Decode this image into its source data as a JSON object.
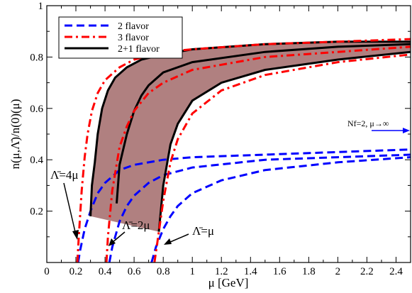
{
  "chart_data": {
    "type": "line",
    "xlabel": "μ [GeV]",
    "ylabel": "n(μ,Λ̄)/n(0)(μ)",
    "xlim": [
      0,
      2.5
    ],
    "ylim": [
      0,
      1
    ],
    "x_ticks": [
      "0",
      "0.2",
      "0.4",
      "0.6",
      "0.8",
      "1",
      "1.2",
      "1.4",
      "1.6",
      "1.8",
      "2",
      "2.2",
      "2.4"
    ],
    "y_ticks": [
      "0.2",
      "0.4",
      "0.6",
      "0.8",
      "1"
    ],
    "grid": false,
    "legend_position": "top-left",
    "legend": [
      {
        "label": "2 flavor",
        "color": "#0000ff",
        "dash": "dashed"
      },
      {
        "label": "3 flavor",
        "color": "#ff0000",
        "dash": "dashdot"
      },
      {
        "label": "2+1 flavor",
        "color": "#000000",
        "dash": "solid"
      }
    ],
    "band_color": "#b08080",
    "series": [
      {
        "name": "2 flavor",
        "color": "#0000ff",
        "dash": "dashed",
        "curves": [
          {
            "x": [
              0.215,
              0.23,
              0.26,
              0.3,
              0.35,
              0.4,
              0.5,
              0.6,
              0.8,
              1.0,
              1.5,
              2.0,
              2.5
            ],
            "y": [
              0,
              0.05,
              0.13,
              0.2,
              0.27,
              0.31,
              0.36,
              0.38,
              0.4,
              0.41,
              0.42,
              0.43,
              0.44
            ]
          },
          {
            "x": [
              0.43,
              0.45,
              0.5,
              0.55,
              0.6,
              0.7,
              0.8,
              1.0,
              1.5,
              2.0,
              2.5
            ],
            "y": [
              0,
              0.06,
              0.16,
              0.22,
              0.26,
              0.31,
              0.34,
              0.37,
              0.4,
              0.41,
              0.42
            ]
          },
          {
            "x": [
              0.72,
              0.75,
              0.8,
              0.85,
              0.9,
              1.0,
              1.2,
              1.5,
              2.0,
              2.5
            ],
            "y": [
              0,
              0.06,
              0.13,
              0.18,
              0.22,
              0.27,
              0.32,
              0.36,
              0.39,
              0.41
            ]
          }
        ]
      },
      {
        "name": "3 flavor",
        "color": "#ff0000",
        "dash": "dashdot",
        "curves": [
          {
            "x": [
              0.21,
              0.22,
              0.24,
              0.26,
              0.28,
              0.31,
              0.35,
              0.4,
              0.5,
              0.6,
              0.8,
              1.0,
              1.5,
              2.0,
              2.5
            ],
            "y": [
              0,
              0.1,
              0.28,
              0.41,
              0.5,
              0.59,
              0.66,
              0.71,
              0.76,
              0.79,
              0.82,
              0.83,
              0.85,
              0.86,
              0.87
            ]
          },
          {
            "x": [
              0.41,
              0.42,
              0.45,
              0.5,
              0.55,
              0.6,
              0.7,
              0.8,
              1.0,
              1.5,
              2.0,
              2.5
            ],
            "y": [
              0,
              0.1,
              0.28,
              0.45,
              0.53,
              0.59,
              0.66,
              0.7,
              0.75,
              0.8,
              0.82,
              0.84
            ]
          },
          {
            "x": [
              0.74,
              0.76,
              0.8,
              0.85,
              0.9,
              1.0,
              1.2,
              1.5,
              2.0,
              2.5
            ],
            "y": [
              0,
              0.08,
              0.24,
              0.39,
              0.48,
              0.58,
              0.67,
              0.73,
              0.78,
              0.81
            ]
          }
        ]
      },
      {
        "name": "2+1 flavor",
        "color": "#000000",
        "dash": "solid",
        "curves": [
          {
            "x": [
              0.3,
              0.31,
              0.33,
              0.35,
              0.38,
              0.42,
              0.47,
              0.55,
              0.65,
              0.8,
              1.0,
              1.5,
              2.0,
              2.5
            ],
            "y": [
              0.18,
              0.3,
              0.39,
              0.5,
              0.6,
              0.67,
              0.72,
              0.76,
              0.79,
              0.81,
              0.83,
              0.85,
              0.86,
              0.86
            ]
          },
          {
            "x": [
              0.48,
              0.5,
              0.55,
              0.6,
              0.65,
              0.7,
              0.8,
              1.0,
              1.5,
              2.0,
              2.5
            ],
            "y": [
              0.23,
              0.38,
              0.5,
              0.59,
              0.65,
              0.69,
              0.74,
              0.78,
              0.82,
              0.84,
              0.85
            ]
          },
          {
            "x": [
              0.77,
              0.8,
              0.85,
              0.9,
              1.0,
              1.2,
              1.5,
              2.0,
              2.5
            ],
            "y": [
              0.12,
              0.3,
              0.46,
              0.54,
              0.63,
              0.7,
              0.75,
              0.79,
              0.82
            ]
          }
        ]
      }
    ],
    "annotations": [
      {
        "text": "Λ̄=4μ",
        "anchor": [
          0.08,
          0.4
        ],
        "target": [
          0.2,
          0.025
        ]
      },
      {
        "text": "Λ̄=2μ",
        "anchor": [
          0.43,
          0.14
        ],
        "target": [
          0.43,
          0.025
        ]
      },
      {
        "text": "Λ̄=μ",
        "anchor": [
          0.99,
          0.08
        ],
        "target": [
          0.8,
          0.03
        ]
      },
      {
        "text": "Nf=2, μ→∞",
        "anchor": [
          2.06,
          0.47
        ],
        "target": [
          2.49,
          0.42
        ]
      }
    ]
  }
}
